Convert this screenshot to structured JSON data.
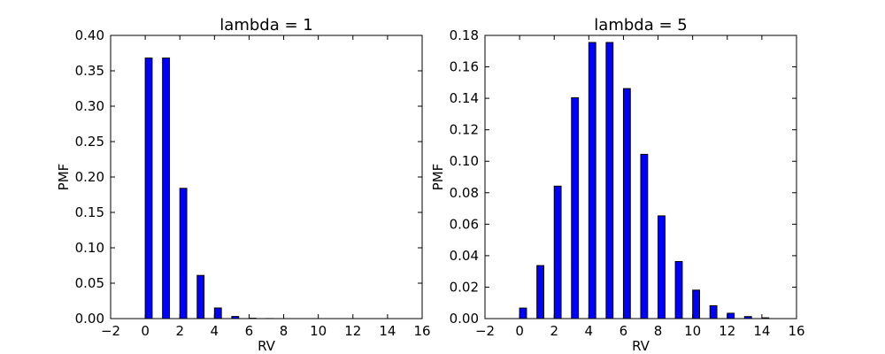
{
  "chart_data": [
    {
      "type": "bar",
      "title": "lambda = 1",
      "xlabel": "RV",
      "ylabel": "PMF",
      "xlim": [
        -2,
        16
      ],
      "ylim": [
        0,
        0.4
      ],
      "xticks": [
        "−2",
        "0",
        "2",
        "4",
        "6",
        "8",
        "10",
        "12",
        "14",
        "16"
      ],
      "yticks": [
        "0.00",
        "0.05",
        "0.10",
        "0.15",
        "0.20",
        "0.25",
        "0.30",
        "0.35",
        "0.40"
      ],
      "bar_color": "#0000ff",
      "x": [
        0,
        1,
        2,
        3,
        4,
        5,
        6,
        7,
        8,
        9,
        10,
        11,
        12,
        13,
        14
      ],
      "values": [
        0.368,
        0.368,
        0.184,
        0.061,
        0.015,
        0.003,
        0.0005,
        0.0001,
        0,
        0,
        0,
        0,
        0,
        0,
        0
      ]
    },
    {
      "type": "bar",
      "title": "lambda = 5",
      "xlabel": "RV",
      "ylabel": "PMF",
      "xlim": [
        -2,
        16
      ],
      "ylim": [
        0,
        0.18
      ],
      "xticks": [
        "−2",
        "0",
        "2",
        "4",
        "6",
        "8",
        "10",
        "12",
        "14",
        "16"
      ],
      "yticks": [
        "0.00",
        "0.02",
        "0.04",
        "0.06",
        "0.08",
        "0.10",
        "0.12",
        "0.14",
        "0.16",
        "0.18"
      ],
      "bar_color": "#0000ff",
      "x": [
        0,
        1,
        2,
        3,
        4,
        5,
        6,
        7,
        8,
        9,
        10,
        11,
        12,
        13,
        14
      ],
      "values": [
        0.0067,
        0.0337,
        0.0842,
        0.1404,
        0.1755,
        0.1755,
        0.1462,
        0.1044,
        0.0653,
        0.0363,
        0.0181,
        0.0082,
        0.0034,
        0.0013,
        0.0005
      ]
    }
  ]
}
